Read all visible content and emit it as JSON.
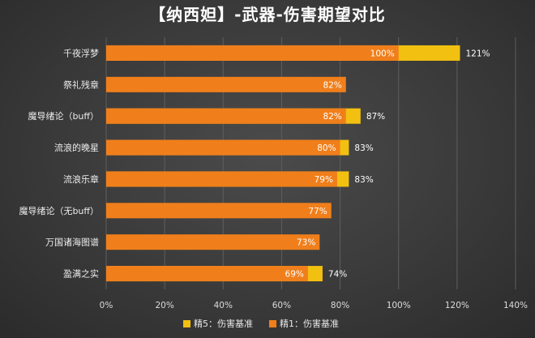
{
  "chart_data": {
    "type": "bar",
    "orientation": "horizontal",
    "title": "【纳西妲】-武器-伤害期望对比",
    "categories": [
      "千夜浮梦",
      "祭礼残章",
      "魔导绪论（buff）",
      "流浪的晚星",
      "流浪乐章",
      "魔导绪论（无buff）",
      "万国诸海图谱",
      "盈满之实"
    ],
    "series": [
      {
        "name": "精1：伤害基准",
        "color": "#f07f1b",
        "values": [
          100,
          82,
          82,
          80,
          79,
          77,
          73,
          69
        ],
        "labels": [
          "100%",
          "82%",
          "82%",
          "80%",
          "79%",
          "77%",
          "73%",
          "69%"
        ]
      },
      {
        "name": "精5：伤害基准",
        "color": "#f2c011",
        "values": [
          121,
          null,
          87,
          83,
          83,
          null,
          null,
          74
        ],
        "labels": [
          "121%",
          "",
          "87%",
          "83%",
          "83%",
          "",
          "",
          "74%"
        ]
      }
    ],
    "xlim": [
      0,
      140
    ],
    "xticks": [
      "0%",
      "20%",
      "40%",
      "60%",
      "80%",
      "100%",
      "120%",
      "140%"
    ],
    "grid": true,
    "legend_position": "bottom"
  }
}
